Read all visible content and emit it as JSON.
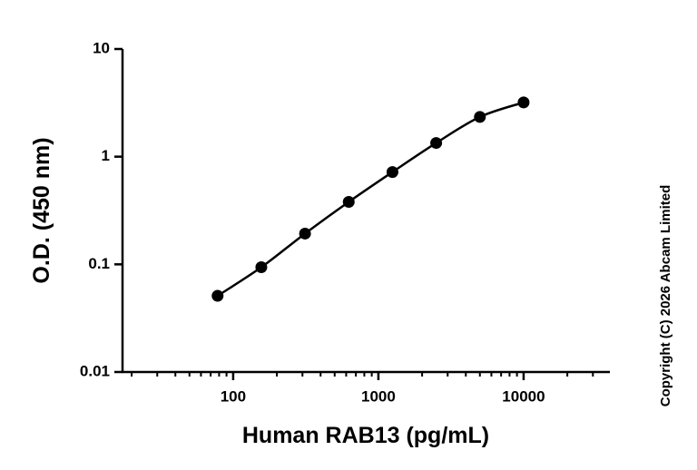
{
  "chart_data": {
    "type": "scatter",
    "x_label": "Human RAB13 (pg/mL)",
    "y_label": "O.D. (450 nm)",
    "copyright": "Copyright (C) 2026 Abcam Limited",
    "x": [
      78.125,
      156.25,
      312.5,
      625,
      1250,
      2500,
      5000,
      10000
    ],
    "series": [
      {
        "color": "#000000",
        "values": [
          0.051,
          0.094,
          0.193,
          0.38,
          0.72,
          1.34,
          2.34,
          3.19
        ]
      }
    ],
    "xlog": true,
    "ylog": true,
    "xlim": [
      17.3,
      39270
    ],
    "ylim": [
      0.01,
      10
    ],
    "xticks": [
      100,
      1000,
      10000
    ],
    "xminorticks": [
      20,
      30,
      40,
      50,
      60,
      70,
      80,
      90,
      200,
      300,
      400,
      500,
      600,
      700,
      800,
      900,
      2000,
      3000,
      4000,
      5000,
      6000,
      7000,
      8000,
      9000,
      20000,
      30000
    ],
    "yticks": [
      0.01,
      0.1,
      1,
      10
    ],
    "curve": true
  }
}
